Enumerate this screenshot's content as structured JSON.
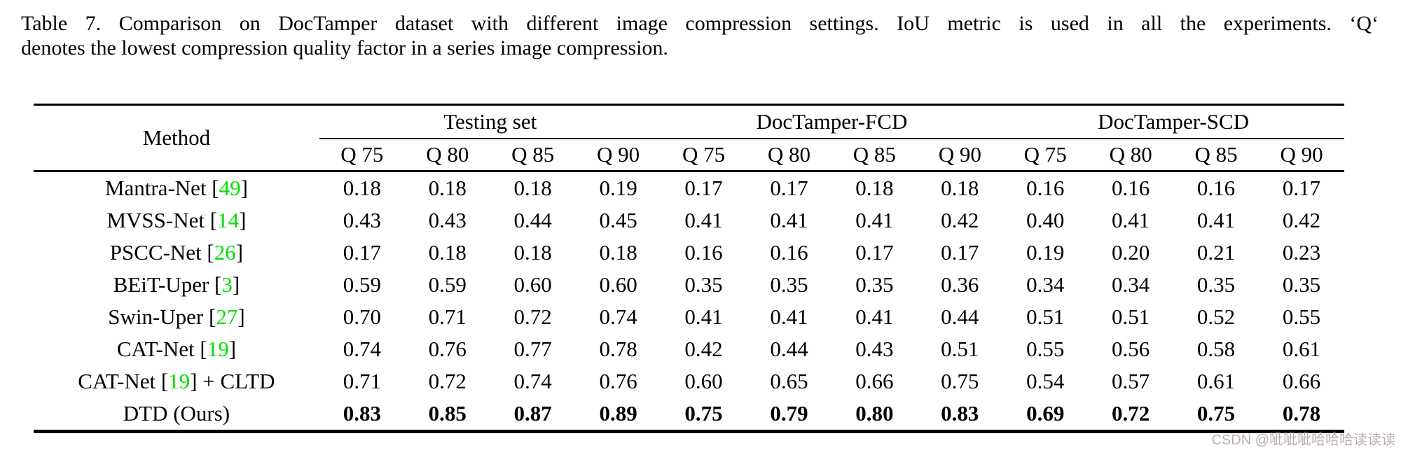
{
  "caption": {
    "line1": "Table 7.  Comparison on DocTamper dataset with different image compression settings.  IoU metric is used in all the experiments.  ‘Q‘",
    "line2": "denotes the lowest compression quality factor in a series image compression."
  },
  "table": {
    "method_header": "Method",
    "groups": [
      {
        "label": "Testing set"
      },
      {
        "label": "DocTamper-FCD"
      },
      {
        "label": "DocTamper-SCD"
      }
    ],
    "q_labels": [
      "Q 75",
      "Q 80",
      "Q 85",
      "Q 90"
    ],
    "rows": [
      {
        "method_prefix": "Mantra-Net [",
        "ref": "49",
        "method_suffix": "]",
        "bold_values": false,
        "values": [
          "0.18",
          "0.18",
          "0.18",
          "0.19",
          "0.17",
          "0.17",
          "0.18",
          "0.18",
          "0.16",
          "0.16",
          "0.16",
          "0.17"
        ]
      },
      {
        "method_prefix": "MVSS-Net [",
        "ref": "14",
        "method_suffix": "]",
        "bold_values": false,
        "values": [
          "0.43",
          "0.43",
          "0.44",
          "0.45",
          "0.41",
          "0.41",
          "0.41",
          "0.42",
          "0.40",
          "0.41",
          "0.41",
          "0.42"
        ]
      },
      {
        "method_prefix": "PSCC-Net [",
        "ref": "26",
        "method_suffix": "]",
        "bold_values": false,
        "values": [
          "0.17",
          "0.18",
          "0.18",
          "0.18",
          "0.16",
          "0.16",
          "0.17",
          "0.17",
          "0.19",
          "0.20",
          "0.21",
          "0.23"
        ]
      },
      {
        "method_prefix": "BEiT-Uper [",
        "ref": "3",
        "method_suffix": "]",
        "bold_values": false,
        "values": [
          "0.59",
          "0.59",
          "0.60",
          "0.60",
          "0.35",
          "0.35",
          "0.35",
          "0.36",
          "0.34",
          "0.34",
          "0.35",
          "0.35"
        ]
      },
      {
        "method_prefix": "Swin-Uper [",
        "ref": "27",
        "method_suffix": "]",
        "bold_values": false,
        "values": [
          "0.70",
          "0.71",
          "0.72",
          "0.74",
          "0.41",
          "0.41",
          "0.41",
          "0.44",
          "0.51",
          "0.51",
          "0.52",
          "0.55"
        ]
      },
      {
        "method_prefix": "CAT-Net [",
        "ref": "19",
        "method_suffix": "]",
        "bold_values": false,
        "values": [
          "0.74",
          "0.76",
          "0.77",
          "0.78",
          "0.42",
          "0.44",
          "0.43",
          "0.51",
          "0.55",
          "0.56",
          "0.58",
          "0.61"
        ]
      },
      {
        "method_prefix": "CAT-Net [",
        "ref": "19",
        "method_suffix": "] + CLTD",
        "bold_values": false,
        "values": [
          "0.71",
          "0.72",
          "0.74",
          "0.76",
          "0.60",
          "0.65",
          "0.66",
          "0.75",
          "0.54",
          "0.57",
          "0.61",
          "0.66"
        ]
      },
      {
        "method_prefix": "DTD (Ours)",
        "ref": "",
        "method_suffix": "",
        "bold_values": true,
        "values": [
          "0.83",
          "0.85",
          "0.87",
          "0.89",
          "0.75",
          "0.79",
          "0.80",
          "0.83",
          "0.69",
          "0.72",
          "0.75",
          "0.78"
        ]
      }
    ]
  },
  "colors": {
    "citation_green": "#00e000",
    "watermark_gray": "#b9aeae"
  },
  "watermark": {
    "text": "CSDN @呲呲呲哈哈哈读读读"
  }
}
